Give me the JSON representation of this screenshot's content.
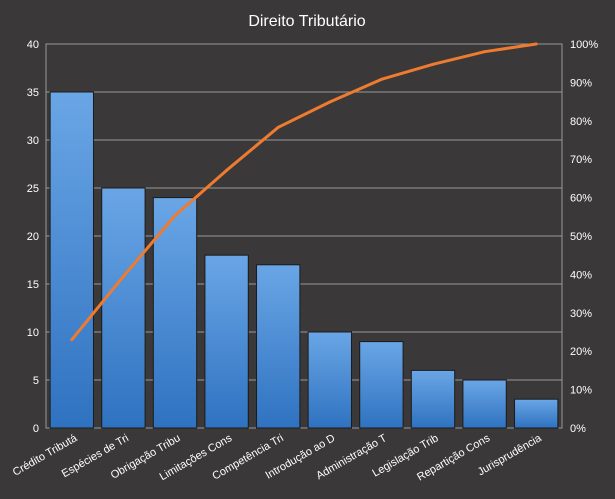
{
  "chart_data": {
    "type": "bar",
    "title": "Direito  Tributário",
    "categories": [
      "Crédito Tributá",
      "Espécies de Tri",
      "Obrigação Tribu",
      "Limitações Cons",
      "Competência Tri",
      "Introdução ao D",
      "Administração T",
      "Legislação Trib",
      "Repartição Cons",
      "Jurisprudência"
    ],
    "series": [
      {
        "type": "bar",
        "axis": "left",
        "values": [
          35,
          25,
          24,
          18,
          17,
          10,
          9,
          6,
          5,
          3
        ]
      },
      {
        "type": "line",
        "axis": "right",
        "values": [
          23.0,
          39.5,
          55.3,
          67.1,
          78.3,
          84.9,
          90.8,
          94.7,
          98.0,
          100.0
        ]
      }
    ],
    "left_axis": {
      "min": 0,
      "max": 40,
      "step": 5,
      "ticks": [
        "0",
        "5",
        "10",
        "15",
        "20",
        "25",
        "30",
        "35",
        "40"
      ]
    },
    "right_axis": {
      "min": 0,
      "max": 100,
      "step": 10,
      "ticks": [
        "0%",
        "10%",
        "20%",
        "30%",
        "40%",
        "50%",
        "60%",
        "70%",
        "80%",
        "90%",
        "100%"
      ]
    },
    "grid": true,
    "legend": "none"
  },
  "colors": {
    "background": "#3a3838",
    "plot_background": "#3a3838",
    "border": "#1f1f1f",
    "gridline": "#9a9a9a",
    "text": "#ffffff",
    "bar_light": "#6aa6e6",
    "bar_dark": "#2f72c0",
    "bar_edge": "#1c1c1c",
    "line": "#ee7b2f"
  }
}
